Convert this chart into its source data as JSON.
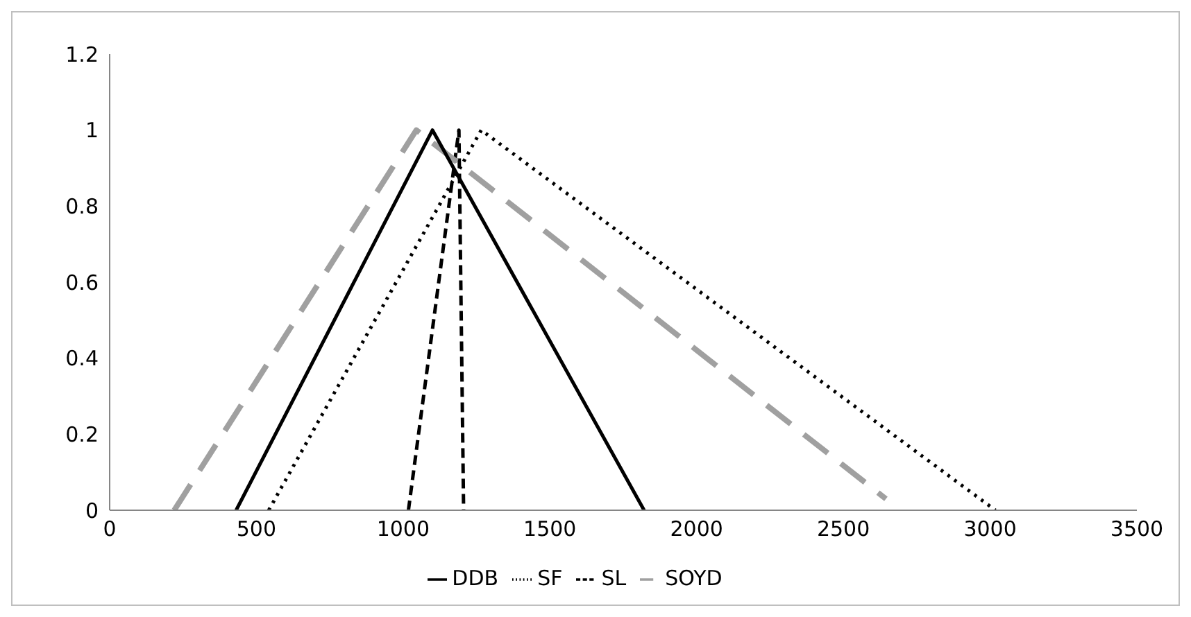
{
  "chart_data": {
    "type": "line",
    "xlim": [
      0,
      3500
    ],
    "xticks": [
      0,
      500,
      1000,
      1500,
      2000,
      2500,
      3000,
      3500
    ],
    "ylim": [
      0,
      1.2
    ],
    "yticks": [
      0,
      0.2,
      0.4,
      0.6,
      0.8,
      1,
      1.2
    ],
    "grid": false,
    "legend": "bottom",
    "marker": "none",
    "series": [
      {
        "name": "SL",
        "color": "#000000",
        "line_style": "dashed",
        "x": [
          1018,
          1190,
          1206
        ],
        "values": [
          0,
          1,
          0
        ]
      },
      {
        "name": "SOYD",
        "color": "#a0a0a0",
        "line_style": "dashed",
        "x": [
          220,
          1045,
          2645
        ],
        "values": [
          0,
          1,
          0.03
        ]
      },
      {
        "name": "DDB",
        "color": "#000000",
        "line_style": "solid",
        "x": [
          431,
          1100,
          1821
        ],
        "values": [
          0,
          1,
          0
        ]
      },
      {
        "name": "SF",
        "color": "#000000",
        "line_style": "dotted",
        "x": [
          542,
          1266,
          3018
        ],
        "values": [
          0,
          1,
          0
        ]
      }
    ]
  }
}
